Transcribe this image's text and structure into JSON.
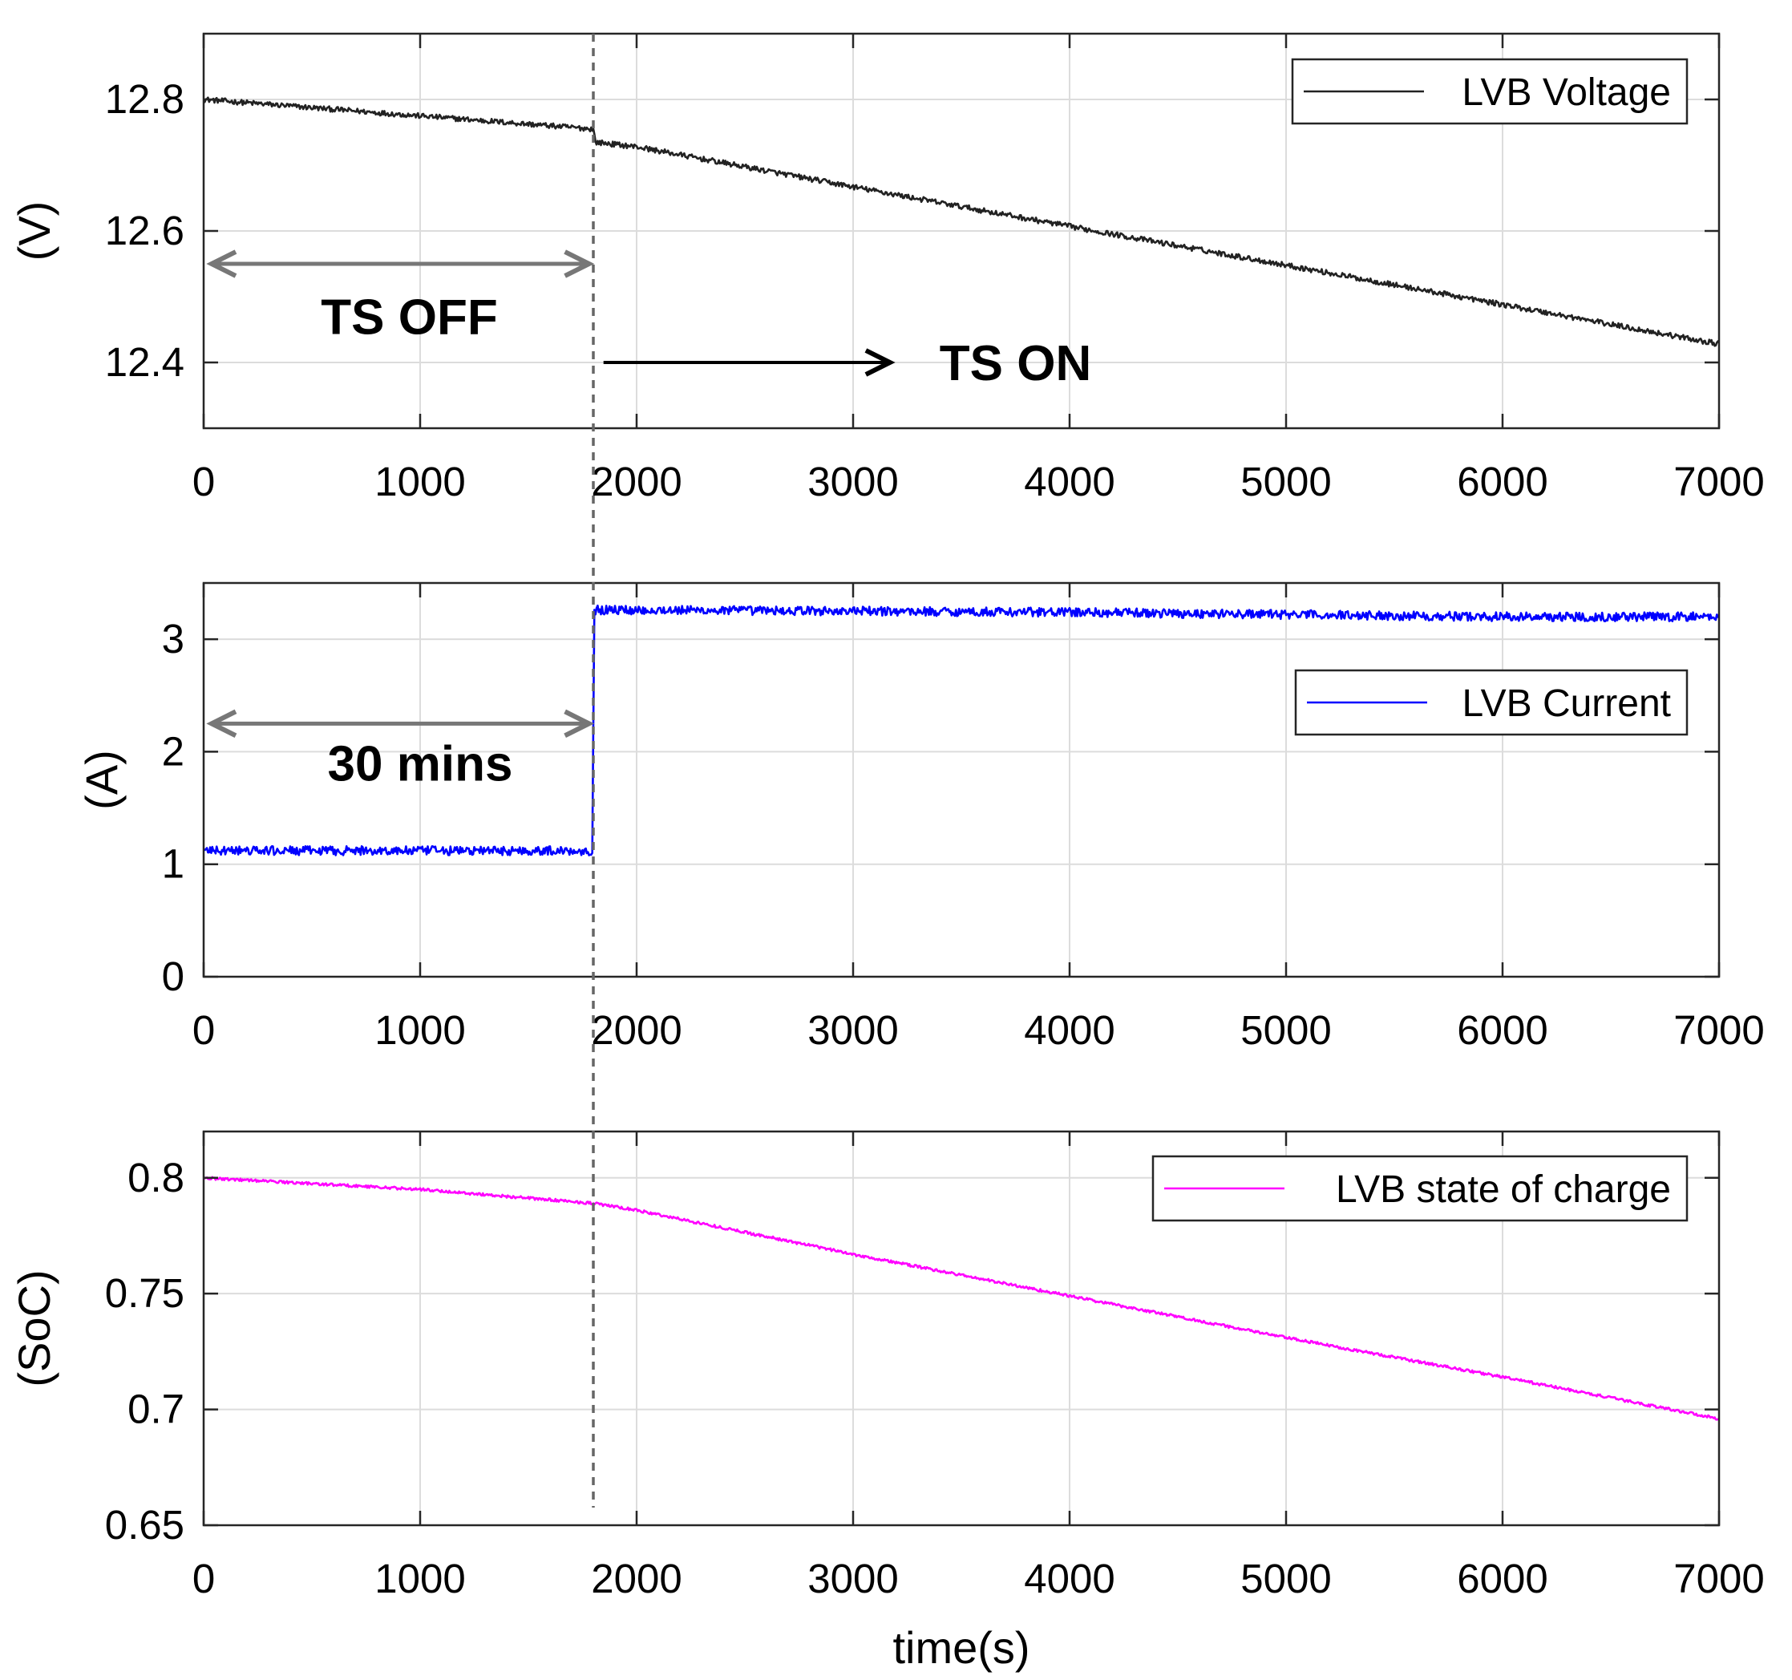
{
  "chart_data": [
    {
      "type": "line",
      "ylabel": "(V)",
      "xlabel": "",
      "xlim": [
        0,
        7000
      ],
      "ylim": [
        12.3,
        12.9
      ],
      "xticks": [
        "0",
        "1000",
        "2000",
        "3000",
        "4000",
        "5000",
        "6000",
        "7000"
      ],
      "xtick_values": [
        0,
        1000,
        2000,
        3000,
        4000,
        5000,
        6000,
        7000
      ],
      "yticks": [
        "12.4",
        "12.6",
        "12.8"
      ],
      "ytick_values": [
        12.4,
        12.6,
        12.8
      ],
      "grid": true,
      "legend_position": "top-right",
      "series": [
        {
          "name": "LVB Voltage",
          "color": "#222222",
          "noise": 0.004,
          "x": [
            0,
            1000,
            1800,
            1810,
            2000,
            3000,
            4000,
            5000,
            6000,
            7000
          ],
          "values": [
            12.8,
            12.775,
            12.755,
            12.735,
            12.728,
            12.667,
            12.607,
            12.548,
            12.488,
            12.428
          ]
        }
      ],
      "annotations": [
        {
          "text": "TS OFF",
          "arrow": "double",
          "x_from": 0,
          "x_to": 1780,
          "y_arrow": 12.55,
          "text_x": 950,
          "text_y": 12.47,
          "color": "#777777"
        },
        {
          "text": "TS ON",
          "arrow": "single",
          "x_from": 1810,
          "x_to": 3170,
          "y_arrow": 12.4,
          "text_x": 3750,
          "text_y": 12.4,
          "color": "#000000"
        }
      ]
    },
    {
      "type": "line",
      "ylabel": "(A)",
      "xlabel": "",
      "xlim": [
        0,
        7000
      ],
      "ylim": [
        0,
        3.5
      ],
      "xticks": [
        "0",
        "1000",
        "2000",
        "3000",
        "4000",
        "5000",
        "6000",
        "7000"
      ],
      "xtick_values": [
        0,
        1000,
        2000,
        3000,
        4000,
        5000,
        6000,
        7000
      ],
      "yticks": [
        "0",
        "1",
        "2",
        "3"
      ],
      "ytick_values": [
        0,
        1,
        2,
        3
      ],
      "grid": true,
      "legend_position": "center-right",
      "series": [
        {
          "name": "LVB Current",
          "color": "#0000ff",
          "noise": 0.04,
          "x": [
            0,
            1000,
            1799,
            1800,
            1801,
            2000,
            3000,
            4000,
            5000,
            6000,
            7000
          ],
          "values": [
            1.12,
            1.12,
            1.12,
            2.2,
            3.26,
            3.26,
            3.25,
            3.24,
            3.22,
            3.2,
            3.2
          ]
        }
      ],
      "annotations": [
        {
          "text": "30 mins",
          "arrow": "double",
          "x_from": 0,
          "x_to": 1780,
          "y_arrow": 2.25,
          "text_x": 1000,
          "text_y": 1.9,
          "color": "#777777"
        }
      ]
    },
    {
      "type": "line",
      "ylabel": "(SoC)",
      "xlabel": "time(s)",
      "xlim": [
        0,
        7000
      ],
      "ylim": [
        0.65,
        0.82
      ],
      "xticks": [
        "0",
        "1000",
        "2000",
        "3000",
        "4000",
        "5000",
        "6000",
        "7000"
      ],
      "xtick_values": [
        0,
        1000,
        2000,
        3000,
        4000,
        5000,
        6000,
        7000
      ],
      "yticks": [
        "0.65",
        "0.7",
        "0.75",
        "0.8"
      ],
      "ytick_values": [
        0.65,
        0.7,
        0.75,
        0.8
      ],
      "grid": true,
      "legend_position": "top-right",
      "series": [
        {
          "name": "LVB state of charge",
          "color": "#ff00ff",
          "noise": 0.0006,
          "x": [
            0,
            1000,
            1800,
            2000,
            3000,
            4000,
            5000,
            6000,
            7000
          ],
          "values": [
            0.8,
            0.795,
            0.789,
            0.786,
            0.767,
            0.749,
            0.731,
            0.714,
            0.696
          ]
        }
      ],
      "annotations": []
    }
  ],
  "marker_line": {
    "x": 1800,
    "color": "#666666",
    "style": "dashed"
  }
}
